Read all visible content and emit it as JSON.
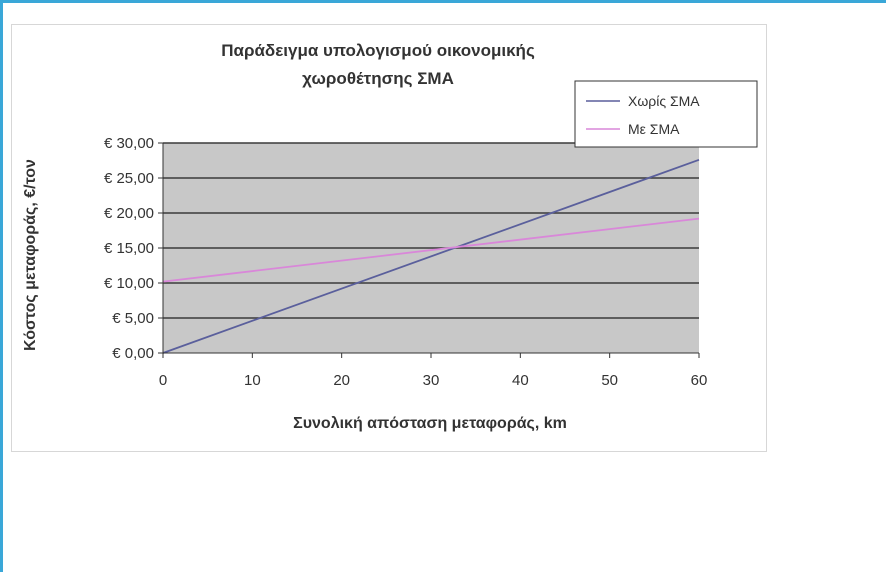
{
  "chart_data": {
    "type": "line",
    "title_lines": [
      "Παράδειγμα υπολογισμού οικονομικής",
      "χωροθέτησης ΣΜΑ"
    ],
    "xlabel": "Συνολική απόσταση μεταφοράς, km",
    "ylabel": "Κόστος μεταφοράς, €/τον",
    "xlim": [
      0,
      60
    ],
    "ylim": [
      0,
      30
    ],
    "x_ticks": [
      0,
      10,
      20,
      30,
      40,
      50,
      60
    ],
    "x_tick_labels": [
      "0",
      "10",
      "20",
      "30",
      "40",
      "50",
      "60"
    ],
    "y_ticks": [
      0,
      5,
      10,
      15,
      20,
      25,
      30
    ],
    "y_tick_labels": [
      "€ 0,00",
      "€ 5,00",
      "€ 10,00",
      "€ 15,00",
      "€ 20,00",
      "€ 25,00",
      "€ 30,00"
    ],
    "grid": true,
    "legend_position": "top-right",
    "series": [
      {
        "name": "Χωρίς ΣΜΑ",
        "color": "#5a5f9c",
        "x": [
          0,
          60
        ],
        "y": [
          0,
          27.6
        ]
      },
      {
        "name": "Με ΣΜΑ",
        "color": "#d987d9",
        "x": [
          0,
          60
        ],
        "y": [
          10.2,
          19.2
        ]
      }
    ],
    "colors": {
      "plot_bg": "#c8c8c8",
      "grid": "#3a3a3a"
    }
  }
}
